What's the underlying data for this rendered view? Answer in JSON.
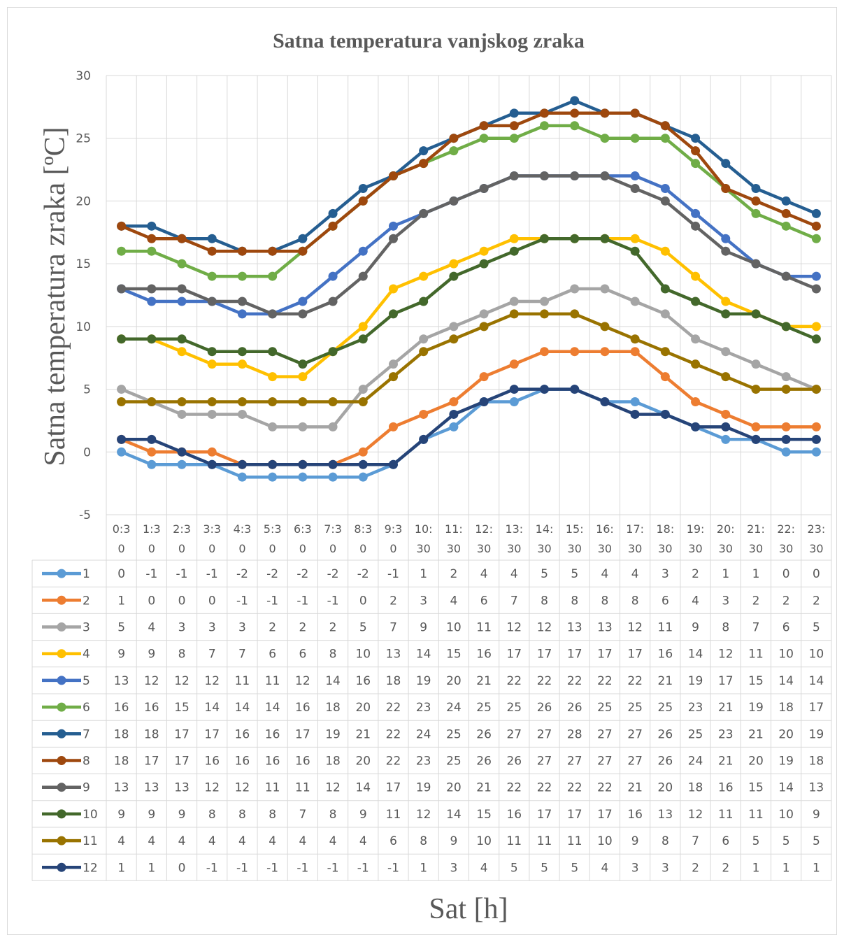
{
  "chart_data": {
    "type": "line",
    "title": "Satna temperatura vanjskog zraka",
    "xlabel": "Sat [h]",
    "ylabel": "Satna temperatura zraka [ºC]",
    "ylim": [
      -5,
      30
    ],
    "yticks": [
      -5,
      0,
      5,
      10,
      15,
      20,
      25,
      30
    ],
    "grid": true,
    "legend": "data-table",
    "categories": [
      "0:30",
      "1:30",
      "2:30",
      "3:30",
      "4:30",
      "5:30",
      "6:30",
      "7:30",
      "8:30",
      "9:30",
      "10:30",
      "11:30",
      "12:30",
      "13:30",
      "14:30",
      "15:30",
      "16:30",
      "17:30",
      "18:30",
      "19:30",
      "20:30",
      "21:30",
      "22:30",
      "23:30"
    ],
    "series": [
      {
        "name": "1",
        "color": "#5B9BD5",
        "values": [
          0,
          -1,
          -1,
          -1,
          -2,
          -2,
          -2,
          -2,
          -2,
          -1,
          1,
          2,
          4,
          4,
          5,
          5,
          4,
          4,
          3,
          2,
          1,
          1,
          0,
          0
        ]
      },
      {
        "name": "2",
        "color": "#ED7D31",
        "values": [
          1,
          0,
          0,
          0,
          -1,
          -1,
          -1,
          -1,
          0,
          2,
          3,
          4,
          6,
          7,
          8,
          8,
          8,
          8,
          6,
          4,
          3,
          2,
          2,
          2
        ]
      },
      {
        "name": "3",
        "color": "#A5A5A5",
        "values": [
          5,
          4,
          3,
          3,
          3,
          2,
          2,
          2,
          5,
          7,
          9,
          10,
          11,
          12,
          12,
          13,
          13,
          12,
          11,
          9,
          8,
          7,
          6,
          5
        ]
      },
      {
        "name": "4",
        "color": "#FFC000",
        "values": [
          9,
          9,
          8,
          7,
          7,
          6,
          6,
          8,
          10,
          13,
          14,
          15,
          16,
          17,
          17,
          17,
          17,
          17,
          16,
          14,
          12,
          11,
          10,
          10
        ]
      },
      {
        "name": "5",
        "color": "#4472C4",
        "values": [
          13,
          12,
          12,
          12,
          11,
          11,
          12,
          14,
          16,
          18,
          19,
          20,
          21,
          22,
          22,
          22,
          22,
          22,
          21,
          19,
          17,
          15,
          14,
          14
        ]
      },
      {
        "name": "6",
        "color": "#70AD47",
        "values": [
          16,
          16,
          15,
          14,
          14,
          14,
          16,
          18,
          20,
          22,
          23,
          24,
          25,
          25,
          26,
          26,
          25,
          25,
          25,
          23,
          21,
          19,
          18,
          17
        ]
      },
      {
        "name": "7",
        "color": "#255E91",
        "values": [
          18,
          18,
          17,
          17,
          16,
          16,
          17,
          19,
          21,
          22,
          24,
          25,
          26,
          27,
          27,
          28,
          27,
          27,
          26,
          25,
          23,
          21,
          20,
          19
        ]
      },
      {
        "name": "8",
        "color": "#9E480E",
        "values": [
          18,
          17,
          17,
          16,
          16,
          16,
          16,
          18,
          20,
          22,
          23,
          25,
          26,
          26,
          27,
          27,
          27,
          27,
          26,
          24,
          21,
          20,
          19,
          18
        ]
      },
      {
        "name": "9",
        "color": "#636363",
        "values": [
          13,
          13,
          13,
          12,
          12,
          11,
          11,
          12,
          14,
          17,
          19,
          20,
          21,
          22,
          22,
          22,
          22,
          21,
          20,
          18,
          16,
          15,
          14,
          13
        ]
      },
      {
        "name": "10",
        "color": "#43682B",
        "values": [
          9,
          9,
          9,
          8,
          8,
          8,
          7,
          8,
          9,
          11,
          12,
          14,
          15,
          16,
          17,
          17,
          17,
          16,
          13,
          12,
          11,
          11,
          10,
          9
        ]
      },
      {
        "name": "11",
        "color": "#997300",
        "values": [
          4,
          4,
          4,
          4,
          4,
          4,
          4,
          4,
          4,
          6,
          8,
          9,
          10,
          11,
          11,
          11,
          10,
          9,
          8,
          7,
          6,
          5,
          5,
          5
        ]
      },
      {
        "name": "12",
        "color": "#264478",
        "values": [
          1,
          1,
          0,
          -1,
          -1,
          -1,
          -1,
          -1,
          -1,
          -1,
          1,
          3,
          4,
          5,
          5,
          5,
          4,
          3,
          3,
          2,
          2,
          1,
          1,
          1
        ]
      }
    ]
  }
}
